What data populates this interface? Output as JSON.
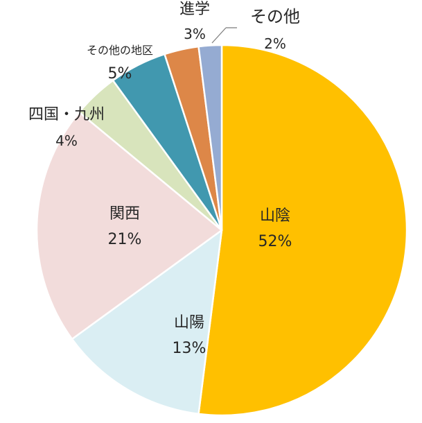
{
  "chart_data": {
    "type": "pie",
    "title": "",
    "start": "12 o'clock, clockwise",
    "slices": [
      {
        "label": "山陰",
        "value": 52,
        "value_label": "52%",
        "color": "#FFC000"
      },
      {
        "label": "山陽",
        "value": 13,
        "value_label": "13%",
        "color": "#DAEEF3"
      },
      {
        "label": "関西",
        "value": 21,
        "value_label": "21%",
        "color": "#F2DCDB"
      },
      {
        "label": "四国・九州",
        "value": 4,
        "value_label": "4%",
        "color": "#D8E4BC"
      },
      {
        "label": "その他の地区",
        "value": 5,
        "value_label": "5%",
        "color": "#4198AF"
      },
      {
        "label": "進学",
        "value": 3,
        "value_label": "3%",
        "color": "#DD8748"
      },
      {
        "label": "その他",
        "value": 2,
        "value_label": "2%",
        "color": "#95ABD2"
      }
    ]
  }
}
